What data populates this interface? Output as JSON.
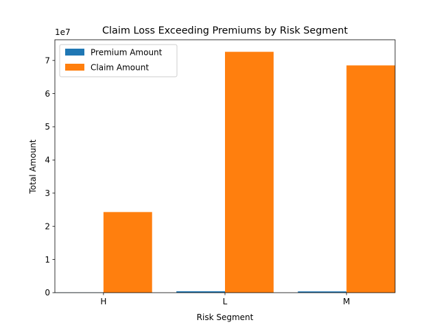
{
  "chart_data": {
    "type": "bar",
    "title": "Claim Loss Exceeding Premiums by Risk Segment",
    "xlabel": "Risk Segment",
    "ylabel": "Total Amount",
    "y_offset_label": "1e7",
    "categories": [
      "H",
      "L",
      "M"
    ],
    "series": [
      {
        "name": "Premium Amount",
        "color": "#1f77b4",
        "values": [
          80000,
          420000,
          380000
        ]
      },
      {
        "name": "Claim Amount",
        "color": "#ff7f0e",
        "values": [
          24300000,
          72600000,
          68500000
        ]
      }
    ],
    "ylim": [
      0,
      76230000
    ],
    "yticks": [
      0,
      10000000,
      20000000,
      30000000,
      40000000,
      50000000,
      60000000,
      70000000
    ],
    "ytick_labels": [
      "0",
      "1",
      "2",
      "3",
      "4",
      "5",
      "6",
      "7"
    ],
    "grid": false,
    "legend_position": "top-left"
  }
}
